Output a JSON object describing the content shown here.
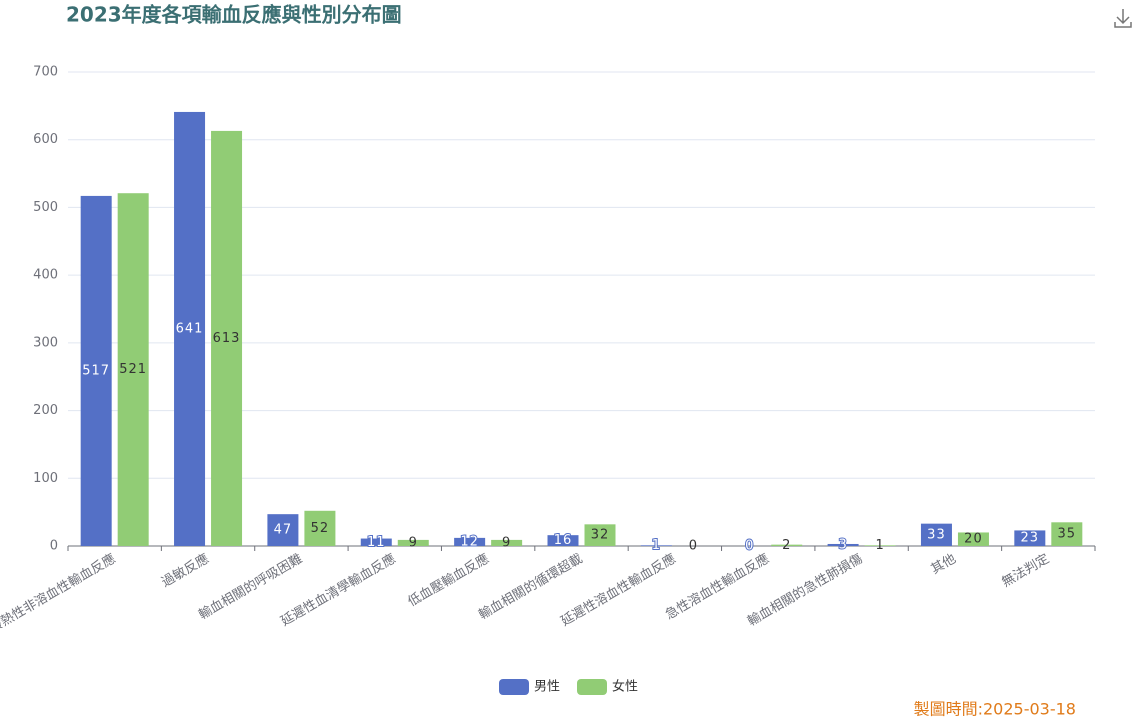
{
  "chart_data": {
    "type": "bar",
    "title": "2023年度各項輸血反應與性別分布圖",
    "footer": "製圖時間:2025-03-18",
    "categories": [
      "發熱性非溶血性輸血反應",
      "過敏反應",
      "輸血相關的呼吸困難",
      "延遲性血清學輸血反應",
      "低血壓輸血反應",
      "輸血相關的循環超載",
      "延遲性溶血性輸血反應",
      "急性溶血性輸血反應",
      "輸血相關的急性肺損傷",
      "其他",
      "無法判定"
    ],
    "series": [
      {
        "name": "男性",
        "color": "#5470c6",
        "values": [
          517,
          641,
          47,
          11,
          12,
          16,
          1,
          0,
          3,
          33,
          23
        ]
      },
      {
        "name": "女性",
        "color": "#91cc75",
        "values": [
          521,
          613,
          52,
          9,
          9,
          32,
          0,
          2,
          1,
          20,
          35
        ]
      }
    ],
    "ylim": [
      0,
      700
    ],
    "yticks": [
      0,
      100,
      200,
      300,
      400,
      500,
      600,
      700
    ],
    "grid": true,
    "legend": "bottom"
  }
}
